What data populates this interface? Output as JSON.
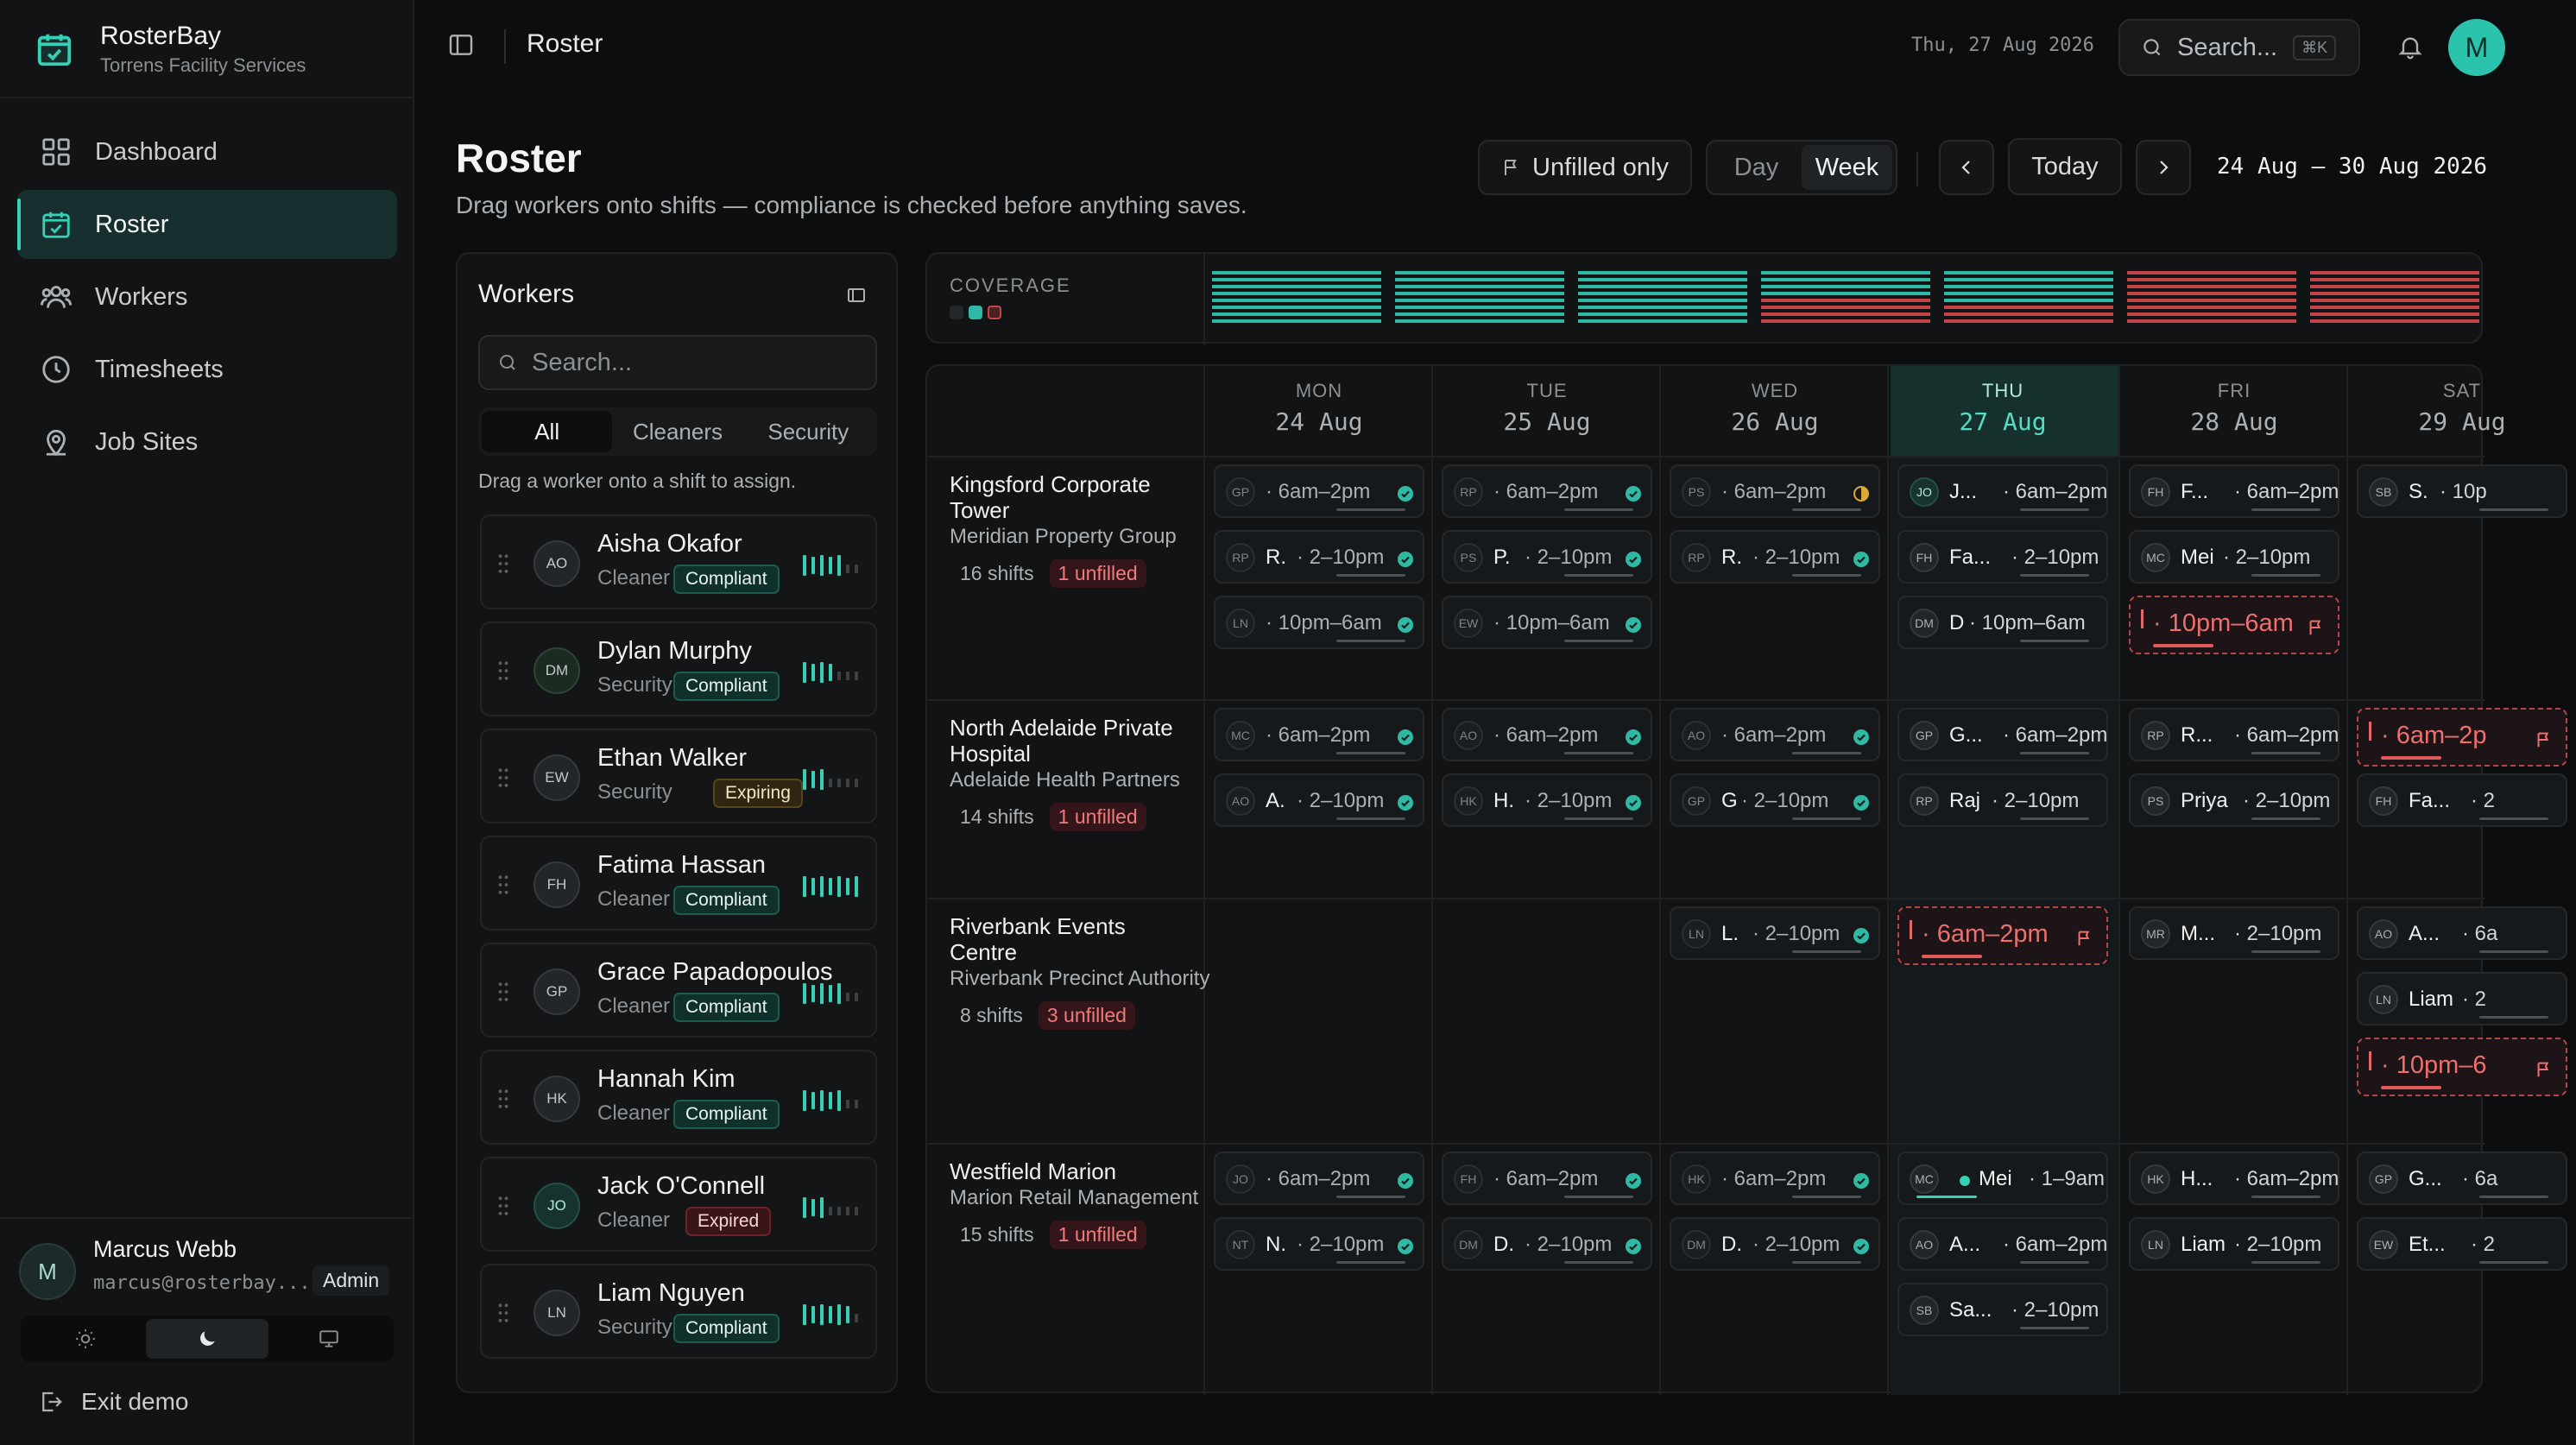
{
  "brand": {
    "name": "RosterBay",
    "subtitle": "Torrens Facility Services"
  },
  "nav": [
    {
      "label": "Dashboard",
      "icon": "grid-icon"
    },
    {
      "label": "Roster",
      "icon": "calendar-check-icon",
      "active": true
    },
    {
      "label": "Workers",
      "icon": "users-icon"
    },
    {
      "label": "Timesheets",
      "icon": "clock-icon"
    },
    {
      "label": "Job Sites",
      "icon": "map-pin-icon"
    }
  ],
  "user": {
    "initial": "M",
    "name": "Marcus Webb",
    "email": "marcus@rosterbay...",
    "role": "Admin",
    "theme": "dark"
  },
  "exit_label": "Exit demo",
  "topbar": {
    "title": "Roster",
    "date": "Thu, 27 Aug 2026",
    "search_placeholder": "Search...",
    "search_kbd": "⌘K",
    "avatar": "M"
  },
  "header": {
    "title": "Roster",
    "subtitle": "Drag workers onto shifts — compliance is checked before anything saves.",
    "unfilled_only": "Unfilled only",
    "view_day": "Day",
    "view_week": "Week",
    "active_view": "Week",
    "today": "Today",
    "range": "24 Aug – 30 Aug 2026"
  },
  "workers_panel": {
    "title": "Workers",
    "search_placeholder": "Search...",
    "tabs": [
      "All",
      "Cleaners",
      "Security"
    ],
    "active_tab": "All",
    "hint": "Drag a worker onto a shift to assign.",
    "workers": [
      {
        "initials": "AO",
        "name": "Aisha Okafor",
        "role": "Cleaner",
        "status": "Compliant",
        "load": 5
      },
      {
        "initials": "DM",
        "name": "Dylan Murphy",
        "role": "Security",
        "status": "Compliant",
        "load": 4
      },
      {
        "initials": "EW",
        "name": "Ethan Walker",
        "role": "Security",
        "status": "Expiring",
        "load": 3
      },
      {
        "initials": "FH",
        "name": "Fatima Hassan",
        "role": "Cleaner",
        "status": "Compliant",
        "load": 7
      },
      {
        "initials": "GP",
        "name": "Grace Papadopoulos",
        "role": "Cleaner",
        "status": "Compliant",
        "load": 5
      },
      {
        "initials": "HK",
        "name": "Hannah Kim",
        "role": "Cleaner",
        "status": "Compliant",
        "load": 5
      },
      {
        "initials": "JO",
        "name": "Jack O'Connell",
        "role": "Cleaner",
        "status": "Expired",
        "load": 3
      },
      {
        "initials": "LN",
        "name": "Liam Nguyen",
        "role": "Security",
        "status": "Compliant",
        "load": 6
      }
    ]
  },
  "coverage": {
    "label": "COVERAGE",
    "days": [
      {
        "filled": 1.0
      },
      {
        "filled": 1.0
      },
      {
        "filled": 1.0
      },
      {
        "filled": 0.5
      },
      {
        "filled": 0.6
      },
      {
        "filled": 0.0
      },
      {
        "filled": 0.0
      }
    ],
    "colors": {
      "filled": "#2fb9a4",
      "unfilled": "#c4464b"
    }
  },
  "days": [
    {
      "dow": "MON",
      "date": "24 Aug"
    },
    {
      "dow": "TUE",
      "date": "25 Aug"
    },
    {
      "dow": "WED",
      "date": "26 Aug"
    },
    {
      "dow": "THU",
      "date": "27 Aug",
      "today": true
    },
    {
      "dow": "FRI",
      "date": "28 Aug"
    },
    {
      "dow": "SAT",
      "date": "29 Aug"
    }
  ],
  "sites": [
    {
      "name": "Kingsford Corporate Tower",
      "client": "Meridian Property Group",
      "shifts": "16 shifts",
      "unfilled": "1 unfilled"
    },
    {
      "name": "North Adelaide Private Hospital",
      "client": "Adelaide Health Partners",
      "shifts": "14 shifts",
      "unfilled": "1 unfilled"
    },
    {
      "name": "Riverbank Events Centre",
      "client": "Riverbank Precinct Authority",
      "shifts": "8 shifts",
      "unfilled": "3 unfilled"
    },
    {
      "name": "Westfield Marion",
      "client": "Marion Retail Management",
      "shifts": "15 shifts",
      "unfilled": "1 unfilled"
    }
  ],
  "shifts": [
    {
      "site": 0,
      "day": 0,
      "slot": 0,
      "initials": "GP",
      "name": "",
      "time": "6am–2pm",
      "status": "ok",
      "muted": true
    },
    {
      "site": 0,
      "day": 0,
      "slot": 1,
      "initials": "RP",
      "name": "R.",
      "time": "2–10pm",
      "status": "ok",
      "muted": true
    },
    {
      "site": 0,
      "day": 0,
      "slot": 2,
      "initials": "LN",
      "name": "",
      "time": "10pm–6am",
      "status": "ok",
      "muted": true
    },
    {
      "site": 0,
      "day": 1,
      "slot": 0,
      "initials": "RP",
      "name": "",
      "time": "6am–2pm",
      "status": "ok",
      "muted": true
    },
    {
      "site": 0,
      "day": 1,
      "slot": 1,
      "initials": "PS",
      "name": "P.",
      "time": "2–10pm",
      "status": "ok",
      "muted": true
    },
    {
      "site": 0,
      "day": 1,
      "slot": 2,
      "initials": "EW",
      "name": "",
      "time": "10pm–6am",
      "status": "ok",
      "muted": true
    },
    {
      "site": 0,
      "day": 2,
      "slot": 0,
      "initials": "PS",
      "name": "",
      "time": "6am–2pm",
      "status": "warn",
      "muted": true
    },
    {
      "site": 0,
      "day": 2,
      "slot": 1,
      "initials": "RP",
      "name": "R.",
      "time": "2–10pm",
      "status": "ok",
      "muted": true
    },
    {
      "site": 0,
      "day": 3,
      "slot": 0,
      "initials": "JO",
      "name": "J...",
      "time": "6am–2pm",
      "status": "none"
    },
    {
      "site": 0,
      "day": 3,
      "slot": 1,
      "initials": "FH",
      "name": "Fa...",
      "time": "2–10pm",
      "status": "none"
    },
    {
      "site": 0,
      "day": 3,
      "slot": 2,
      "initials": "DM",
      "name": "D",
      "time": "10pm–6am",
      "status": "none"
    },
    {
      "site": 0,
      "day": 4,
      "slot": 0,
      "initials": "FH",
      "name": "F...",
      "time": "6am–2pm",
      "status": "none"
    },
    {
      "site": 0,
      "day": 4,
      "slot": 1,
      "initials": "MC",
      "name": "Mei",
      "time": "2–10pm",
      "status": "none"
    },
    {
      "site": 0,
      "day": 4,
      "slot": 2,
      "unfilled": true,
      "time": "10pm–6am"
    },
    {
      "site": 0,
      "day": 5,
      "slot": 0,
      "initials": "SB",
      "name": "S.",
      "time": "10p",
      "status": "none"
    },
    {
      "site": 1,
      "day": 0,
      "slot": 0,
      "initials": "MC",
      "name": "",
      "time": "6am–2pm",
      "status": "ok",
      "muted": true
    },
    {
      "site": 1,
      "day": 0,
      "slot": 1,
      "initials": "AO",
      "name": "A.",
      "time": "2–10pm",
      "status": "ok",
      "muted": true
    },
    {
      "site": 1,
      "day": 1,
      "slot": 0,
      "initials": "AO",
      "name": "",
      "time": "6am–2pm",
      "status": "ok",
      "muted": true
    },
    {
      "site": 1,
      "day": 1,
      "slot": 1,
      "initials": "HK",
      "name": "H.",
      "time": "2–10pm",
      "status": "ok",
      "muted": true
    },
    {
      "site": 1,
      "day": 2,
      "slot": 0,
      "initials": "AO",
      "name": "",
      "time": "6am–2pm",
      "status": "ok",
      "muted": true
    },
    {
      "site": 1,
      "day": 2,
      "slot": 1,
      "initials": "GP",
      "name": "G",
      "time": "2–10pm",
      "status": "ok",
      "muted": true
    },
    {
      "site": 1,
      "day": 3,
      "slot": 0,
      "initials": "GP",
      "name": "G...",
      "time": "6am–2pm",
      "status": "none"
    },
    {
      "site": 1,
      "day": 3,
      "slot": 1,
      "initials": "RP",
      "name": "Raj",
      "time": "2–10pm",
      "status": "none"
    },
    {
      "site": 1,
      "day": 4,
      "slot": 0,
      "initials": "RP",
      "name": "R...",
      "time": "6am–2pm",
      "status": "none"
    },
    {
      "site": 1,
      "day": 4,
      "slot": 1,
      "initials": "PS",
      "name": "Priya",
      "time": "2–10pm",
      "status": "none"
    },
    {
      "site": 1,
      "day": 5,
      "slot": 0,
      "unfilled": true,
      "time": "6am–2p"
    },
    {
      "site": 1,
      "day": 5,
      "slot": 1,
      "initials": "FH",
      "name": "Fa...",
      "time": "2",
      "status": "none"
    },
    {
      "site": 2,
      "day": 2,
      "slot": 0,
      "initials": "LN",
      "name": "L.",
      "time": "2–10pm",
      "status": "ok",
      "muted": true
    },
    {
      "site": 2,
      "day": 3,
      "slot": 0,
      "unfilled": true,
      "time": "6am–2pm"
    },
    {
      "site": 2,
      "day": 4,
      "slot": 0,
      "initials": "MR",
      "name": "M...",
      "time": "2–10pm",
      "status": "none"
    },
    {
      "site": 2,
      "day": 5,
      "slot": 0,
      "initials": "AO",
      "name": "A...",
      "time": "6a",
      "status": "none"
    },
    {
      "site": 2,
      "day": 5,
      "slot": 1,
      "initials": "LN",
      "name": "Liam",
      "time": "2",
      "status": "none"
    },
    {
      "site": 2,
      "day": 5,
      "slot": 2,
      "unfilled": true,
      "time": "10pm–6"
    },
    {
      "site": 3,
      "day": 0,
      "slot": 0,
      "initials": "JO",
      "name": "",
      "time": "6am–2pm",
      "status": "ok",
      "muted": true
    },
    {
      "site": 3,
      "day": 0,
      "slot": 1,
      "initials": "NT",
      "name": "N.",
      "time": "2–10pm",
      "status": "ok",
      "muted": true
    },
    {
      "site": 3,
      "day": 1,
      "slot": 0,
      "initials": "FH",
      "name": "",
      "time": "6am–2pm",
      "status": "ok",
      "muted": true
    },
    {
      "site": 3,
      "day": 1,
      "slot": 1,
      "initials": "DM",
      "name": "D.",
      "time": "2–10pm",
      "status": "ok",
      "muted": true
    },
    {
      "site": 3,
      "day": 2,
      "slot": 0,
      "initials": "HK",
      "name": "",
      "time": "6am–2pm",
      "status": "ok",
      "muted": true
    },
    {
      "site": 3,
      "day": 2,
      "slot": 1,
      "initials": "DM",
      "name": "D.",
      "time": "2–10pm",
      "status": "ok",
      "muted": true
    },
    {
      "site": 3,
      "day": 3,
      "slot": 0,
      "initials": "MC",
      "name": "Mei",
      "time": "1–9am",
      "status": "live",
      "active": true
    },
    {
      "site": 3,
      "day": 3,
      "slot": 1,
      "initials": "AO",
      "name": "A...",
      "time": "6am–2pm",
      "status": "none"
    },
    {
      "site": 3,
      "day": 3,
      "slot": 2,
      "initials": "SB",
      "name": "Sa...",
      "time": "2–10pm",
      "status": "none"
    },
    {
      "site": 3,
      "day": 4,
      "slot": 0,
      "initials": "HK",
      "name": "H...",
      "time": "6am–2pm",
      "status": "none"
    },
    {
      "site": 3,
      "day": 4,
      "slot": 1,
      "initials": "LN",
      "name": "Liam",
      "time": "2–10pm",
      "status": "none"
    },
    {
      "site": 3,
      "day": 5,
      "slot": 0,
      "initials": "GP",
      "name": "G...",
      "time": "6a",
      "status": "none"
    },
    {
      "site": 3,
      "day": 5,
      "slot": 1,
      "initials": "EW",
      "name": "Et...",
      "time": "2",
      "status": "none"
    }
  ]
}
